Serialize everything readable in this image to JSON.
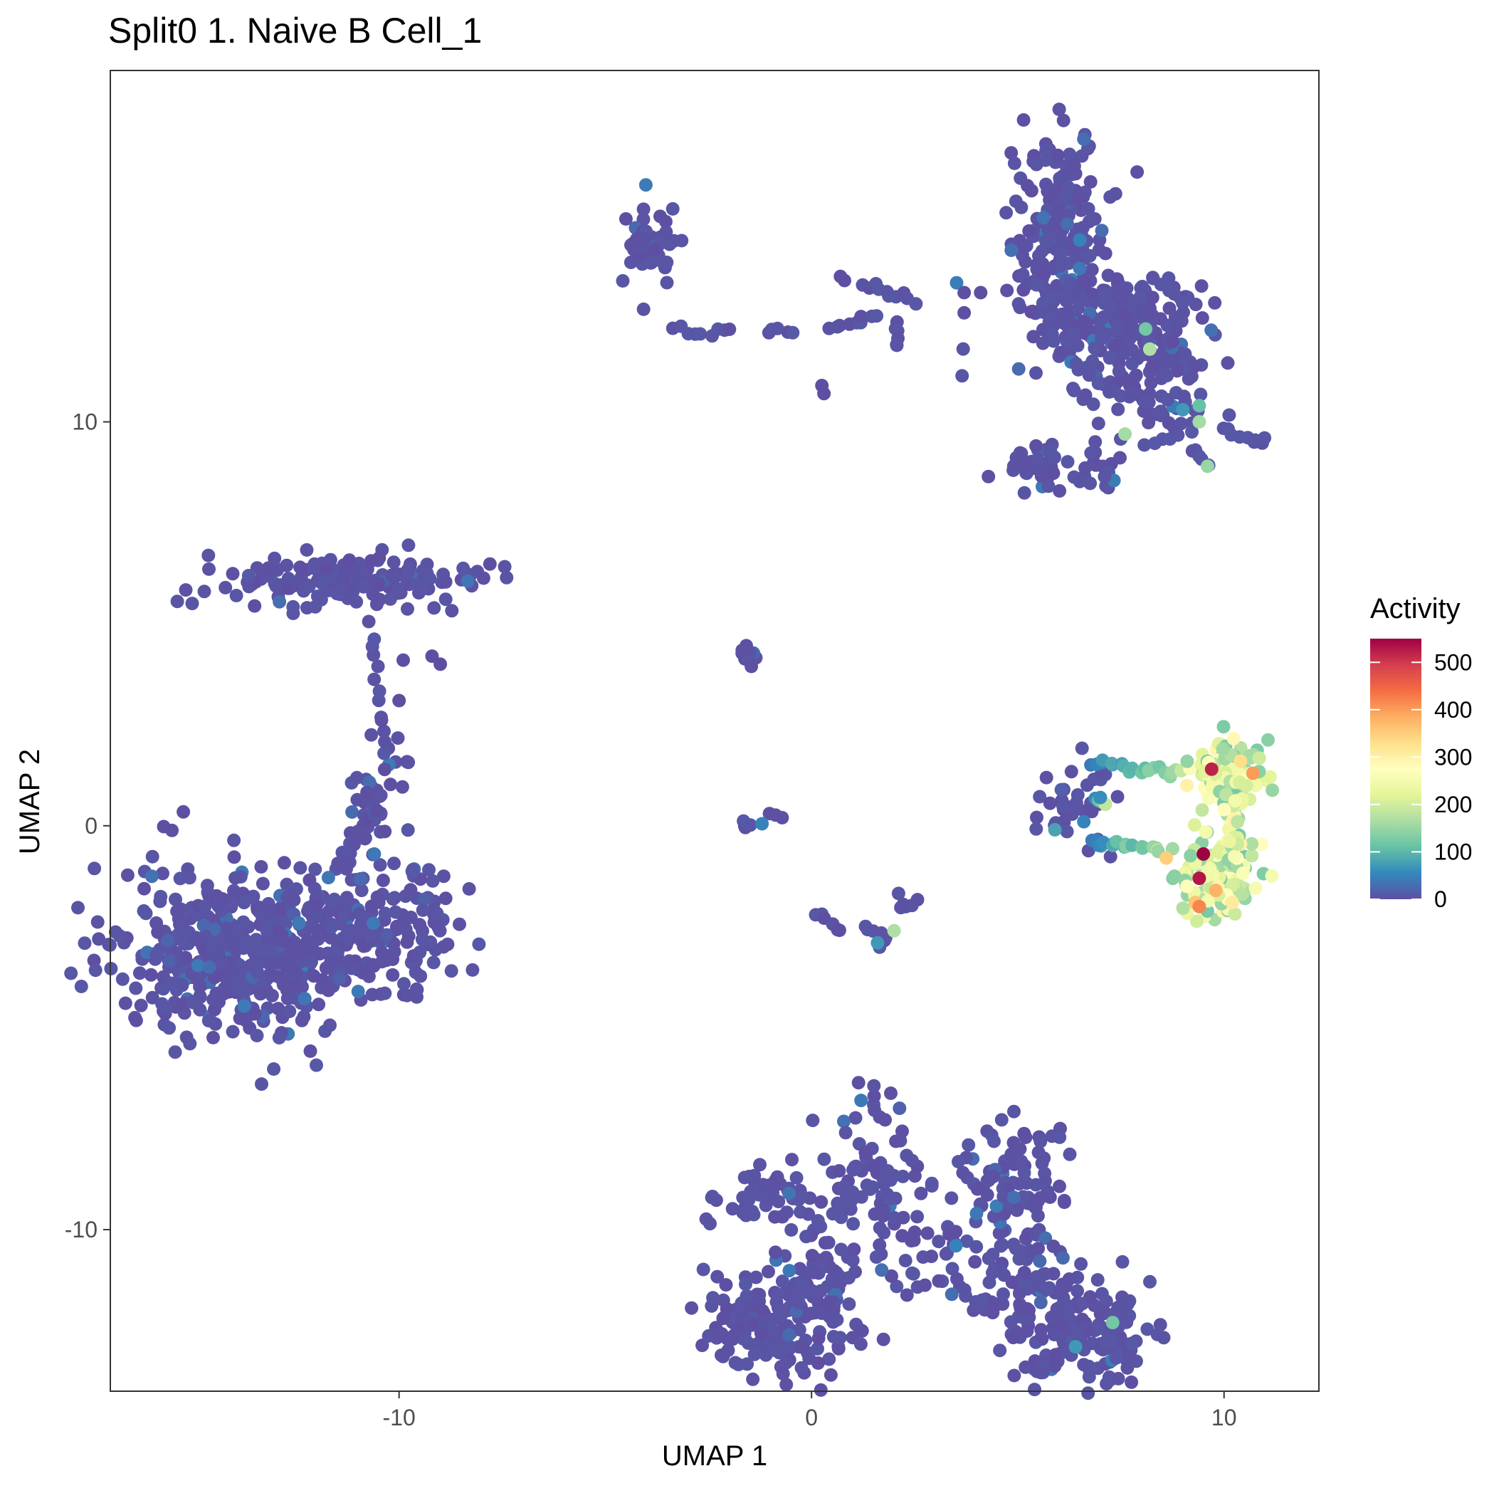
{
  "chart_data": {
    "type": "scatter",
    "title": "Split0 1. Naive B Cell_1",
    "xlabel": "UMAP 1",
    "ylabel": "UMAP 2",
    "xlim": [
      -17,
      12.3
    ],
    "ylim": [
      -14,
      18.7
    ],
    "xticks": [
      {
        "value": -10,
        "label": "-10"
      },
      {
        "value": 0,
        "label": "0"
      },
      {
        "value": 10,
        "label": "10"
      }
    ],
    "yticks": [
      {
        "value": -10,
        "label": "-10"
      },
      {
        "value": 0,
        "label": "0"
      },
      {
        "value": 10,
        "label": "10"
      }
    ],
    "grid": false,
    "legend": {
      "title": "Activity",
      "placement": "right",
      "min": 0,
      "max": 550,
      "breaks": [
        {
          "value": 0,
          "label": "0"
        },
        {
          "value": 100,
          "label": "100"
        },
        {
          "value": 200,
          "label": "200"
        },
        {
          "value": 300,
          "label": "300"
        },
        {
          "value": 400,
          "label": "400"
        },
        {
          "value": 500,
          "label": "500"
        }
      ],
      "palette": [
        "#5E4FA2",
        "#3288BD",
        "#66C2A5",
        "#ABDDA4",
        "#E6F598",
        "#FFFFBF",
        "#FEE08B",
        "#FDAE61",
        "#F46D43",
        "#D53E4F",
        "#9E0142"
      ]
    },
    "clusters": [
      {
        "cx": -14.0,
        "cy": -3.2,
        "sx": 1.4,
        "sy": 1.1,
        "n": 420
      },
      {
        "cx": -11.0,
        "cy": -2.5,
        "sx": 1.2,
        "sy": 0.9,
        "n": 220
      },
      {
        "cx": -10.5,
        "cy": 0.5,
        "sx": 0.35,
        "sy": 0.6,
        "n": 40
      },
      {
        "cx": -11.3,
        "cy": 6.1,
        "sx": 1.5,
        "sy": 0.35,
        "n": 170
      },
      {
        "cx": -3.9,
        "cy": 14.3,
        "sx": 0.35,
        "sy": 0.5,
        "n": 50
      },
      {
        "cx": 6.0,
        "cy": 14.5,
        "sx": 0.6,
        "sy": 1.2,
        "n": 180
      },
      {
        "cx": 7.2,
        "cy": 12.6,
        "sx": 1.1,
        "sy": 0.8,
        "n": 200
      },
      {
        "cx": 8.0,
        "cy": 11.1,
        "sx": 0.8,
        "sy": 0.8,
        "n": 110
      },
      {
        "cx": 5.5,
        "cy": 8.9,
        "sx": 0.4,
        "sy": 0.25,
        "n": 40
      },
      {
        "cx": 7.0,
        "cy": 8.8,
        "sx": 0.3,
        "sy": 0.3,
        "n": 15
      },
      {
        "cx": 6.3,
        "cy": 0.5,
        "sx": 0.5,
        "sy": 0.5,
        "n": 40
      },
      {
        "cx": -1.5,
        "cy": 4.2,
        "sx": 0.15,
        "sy": 0.15,
        "n": 12
      },
      {
        "cx": 2.3,
        "cy": -2.0,
        "sx": 0.2,
        "sy": 0.15,
        "n": 6
      },
      {
        "cx": 1.5,
        "cy": -2.7,
        "sx": 0.25,
        "sy": 0.2,
        "n": 8
      },
      {
        "cx": -0.7,
        "cy": -9.2,
        "sx": 0.8,
        "sy": 0.5,
        "n": 60
      },
      {
        "cx": 1.5,
        "cy": -8.8,
        "sx": 0.6,
        "sy": 1.0,
        "n": 90
      },
      {
        "cx": 4.9,
        "cy": -9.0,
        "sx": 0.6,
        "sy": 0.9,
        "n": 100
      },
      {
        "cx": -0.8,
        "cy": -12.3,
        "sx": 1.0,
        "sy": 0.6,
        "n": 170
      },
      {
        "cx": 0.2,
        "cy": -11.2,
        "sx": 0.5,
        "sy": 0.5,
        "n": 50
      },
      {
        "cx": 6.4,
        "cy": -12.6,
        "sx": 0.9,
        "sy": 0.6,
        "n": 160
      },
      {
        "cx": 5.3,
        "cy": -11.0,
        "sx": 0.5,
        "sy": 0.6,
        "n": 50
      },
      {
        "cx": 3.0,
        "cy": -10.8,
        "sx": 0.6,
        "sy": 0.5,
        "n": 30
      }
    ],
    "hot_clusters": [
      {
        "cx": 10.1,
        "cy": 1.3,
        "sx": 0.4,
        "sy": 0.45,
        "n": 110
      },
      {
        "cx": 9.9,
        "cy": -1.3,
        "sx": 0.45,
        "sy": 0.5,
        "n": 120
      },
      {
        "cx": 10.3,
        "cy": 0.0,
        "sx": 0.15,
        "sy": 0.6,
        "n": 30
      }
    ],
    "trails": [
      {
        "x1": -10.3,
        "y1": 1.5,
        "x2": -10.7,
        "y2": 5.0,
        "n": 14
      },
      {
        "x1": -11.5,
        "y1": -1.0,
        "x2": -10.5,
        "y2": 0.5,
        "n": 14
      },
      {
        "x1": -3.3,
        "y1": 12.3,
        "x2": -1.9,
        "y2": 12.2,
        "n": 9
      },
      {
        "x1": -1.0,
        "y1": 12.2,
        "x2": -0.5,
        "y2": 12.3,
        "n": 5
      },
      {
        "x1": 0.4,
        "y1": 12.3,
        "x2": 1.6,
        "y2": 12.6,
        "n": 9
      },
      {
        "x1": 1.3,
        "y1": 13.4,
        "x2": 2.5,
        "y2": 13.0,
        "n": 10
      },
      {
        "x1": 2.0,
        "y1": 12.5,
        "x2": 2.2,
        "y2": 11.9,
        "n": 6
      },
      {
        "x1": 10.0,
        "y1": 9.8,
        "x2": 11.0,
        "y2": 9.5,
        "n": 9
      },
      {
        "x1": 8.1,
        "y1": 9.4,
        "x2": 9.1,
        "y2": 9.7,
        "n": 6
      },
      {
        "x1": 9.3,
        "y1": 9.3,
        "x2": 9.6,
        "y2": 8.9,
        "n": 4
      },
      {
        "x1": 6.8,
        "y1": 1.6,
        "x2": 9.0,
        "y2": 1.3,
        "n": 20
      },
      {
        "x1": 6.8,
        "y1": -0.4,
        "x2": 8.6,
        "y2": -0.6,
        "n": 20
      },
      {
        "x1": 6.8,
        "y1": 0.8,
        "x2": 7.2,
        "y2": 0.5,
        "n": 4
      },
      {
        "x1": 0.1,
        "y1": -2.2,
        "x2": 0.8,
        "y2": -2.6,
        "n": 6
      },
      {
        "x1": -1.7,
        "y1": 0.0,
        "x2": -1.4,
        "y2": 0.05,
        "n": 4
      },
      {
        "x1": -1.0,
        "y1": 0.3,
        "x2": -0.8,
        "y2": 0.2,
        "n": 3
      },
      {
        "x1": 3.8,
        "y1": -11.6,
        "x2": 4.4,
        "y2": -12.0,
        "n": 5
      },
      {
        "x1": 5.7,
        "y1": 14.5,
        "x2": 6.7,
        "y2": 17.0,
        "n": 12
      }
    ],
    "singles": [
      {
        "x": 0.25,
        "y": 10.9,
        "v": 0
      },
      {
        "x": 0.3,
        "y": 10.7,
        "v": 0
      },
      {
        "x": 0.8,
        "y": 13.5,
        "v": 0
      },
      {
        "x": 0.7,
        "y": 13.6,
        "v": 0
      },
      {
        "x": 3.7,
        "y": 13.2,
        "v": 0
      },
      {
        "x": 4.1,
        "y": 13.2,
        "v": 0
      },
      {
        "x": 3.7,
        "y": 12.7,
        "v": 0
      },
      {
        "x": -12.4,
        "y": 6.4,
        "v": 0
      },
      {
        "x": -9.9,
        "y": 4.1,
        "v": 0
      },
      {
        "x": -10.0,
        "y": 3.1,
        "v": 0
      },
      {
        "x": -9.2,
        "y": 4.2,
        "v": 0
      },
      {
        "x": -9.0,
        "y": 4.0,
        "v": 0
      },
      {
        "x": 9.4,
        "y": 10.0,
        "v": 160
      },
      {
        "x": 9.6,
        "y": 8.9,
        "v": 150
      },
      {
        "x": 8.2,
        "y": 11.8,
        "v": 170
      },
      {
        "x": 8.1,
        "y": 12.3,
        "v": 120
      },
      {
        "x": 7.6,
        "y": 9.7,
        "v": 160
      },
      {
        "x": 9.4,
        "y": 10.4,
        "v": 110
      },
      {
        "x": 9.0,
        "y": 10.3,
        "v": 70
      },
      {
        "x": 6.5,
        "y": 14.5,
        "v": 50
      },
      {
        "x": 6.5,
        "y": 13.8,
        "v": 40
      },
      {
        "x": 9.5,
        "y": -0.7,
        "v": 550
      },
      {
        "x": 9.4,
        "y": -1.3,
        "v": 530
      },
      {
        "x": 9.7,
        "y": 1.4,
        "v": 520
      },
      {
        "x": 9.4,
        "y": -2.0,
        "v": 420
      },
      {
        "x": 10.7,
        "y": 1.3,
        "v": 400
      },
      {
        "x": 9.8,
        "y": -1.6,
        "v": 380
      },
      {
        "x": 8.6,
        "y": -0.8,
        "v": 350
      },
      {
        "x": 10.4,
        "y": 1.6,
        "v": 330
      },
      {
        "x": 10.2,
        "y": -1.9,
        "v": 310
      },
      {
        "x": 9.1,
        "y": 1.0,
        "v": 300
      },
      {
        "x": 10.0,
        "y": 0.4,
        "v": 280
      },
      {
        "x": 9.3,
        "y": -1.9,
        "v": 360
      },
      {
        "x": 9.1,
        "y": -1.5,
        "v": 270
      },
      {
        "x": 7.0,
        "y": 0.7,
        "v": 60
      },
      {
        "x": 6.6,
        "y": 0.1,
        "v": 50
      },
      {
        "x": 5.9,
        "y": -0.1,
        "v": 80
      },
      {
        "x": 2.0,
        "y": -2.6,
        "v": 170
      },
      {
        "x": 1.6,
        "y": -2.9,
        "v": 70
      },
      {
        "x": -1.2,
        "y": 0.05,
        "v": 50
      },
      {
        "x": -10.6,
        "y": -0.7,
        "v": 40
      },
      {
        "x": -14.6,
        "y": -3.5,
        "v": 30
      },
      {
        "x": 1.2,
        "y": -6.8,
        "v": 40
      },
      {
        "x": 3.5,
        "y": -10.4,
        "v": 50
      },
      {
        "x": 4.9,
        "y": -9.2,
        "v": 30
      },
      {
        "x": 6.4,
        "y": -12.9,
        "v": 70
      },
      {
        "x": 7.3,
        "y": -12.3,
        "v": 120
      },
      {
        "x": 3.4,
        "y": -11.6,
        "v": 30
      },
      {
        "x": 1.7,
        "y": -11.0,
        "v": 30
      },
      {
        "x": 6.2,
        "y": 14.9,
        "v": 30
      },
      {
        "x": 6.6,
        "y": 17.0,
        "v": 30
      },
      {
        "x": 4.0,
        "y": -9.6,
        "v": 40
      }
    ]
  }
}
